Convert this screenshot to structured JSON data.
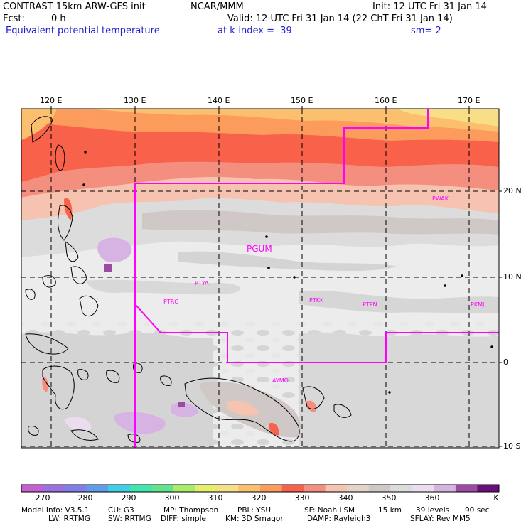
{
  "header": {
    "model_title": "CONTRAST 15km ARW-GFS init",
    "org": "NCAR/MMM",
    "init": "Init: 12 UTC Fri 31 Jan 14",
    "fcst_label": "Fcst:",
    "fcst_value": "0 h",
    "valid": "Valid: 12 UTC Fri 31 Jan 14 (22 ChT Fri 31 Jan 14)",
    "field_name": "Equivalent potential temperature",
    "level": "at k-index =  39",
    "smoothing": "sm= 2"
  },
  "map": {
    "lon_labels": [
      "120 E",
      "130 E",
      "140 E",
      "150 E",
      "160 E",
      "170 E"
    ],
    "lat_labels": [
      "20 N",
      "10 N",
      "0",
      "10 S"
    ],
    "stations": [
      "PGUM",
      "PTYA",
      "PTRO",
      "PTKK",
      "PTPN",
      "PKMJ",
      "PWAK",
      "AYMO"
    ],
    "colors": {
      "boundary": "#ff00ff",
      "grid": "#000000"
    }
  },
  "colorbar": {
    "labels": [
      "270",
      "280",
      "290",
      "300",
      "310",
      "320",
      "330",
      "340",
      "350",
      "360"
    ],
    "unit": "K",
    "colors": [
      "#c65fd1",
      "#9a6fe0",
      "#7f7fe8",
      "#5f9de8",
      "#3fcfe8",
      "#3fe6b0",
      "#5fe68a",
      "#a8ec6a",
      "#e6ee6a",
      "#f9de88",
      "#fbbf6e",
      "#fb9b5c",
      "#f8614a",
      "#f48f80",
      "#f6c3b0",
      "#e2d4c8",
      "#cfc8c6",
      "#dcdcdc",
      "#ecdcef",
      "#d7b3e3",
      "#9b4ba3",
      "#6b0f7a"
    ]
  },
  "footer": {
    "line1": [
      "Model Info: V3.5.1",
      "CU: G3",
      "MP: Thompson",
      "PBL: YSU",
      "SF: Noah LSM",
      "15 km",
      "39 levels",
      "90 sec"
    ],
    "line2": [
      "LW: RRTMG",
      "SW: RRTMG",
      "DIFF: simple",
      "KM: 3D Smagor",
      "DAMP: Rayleigh3",
      "SFLAY: Rev MM5"
    ]
  }
}
